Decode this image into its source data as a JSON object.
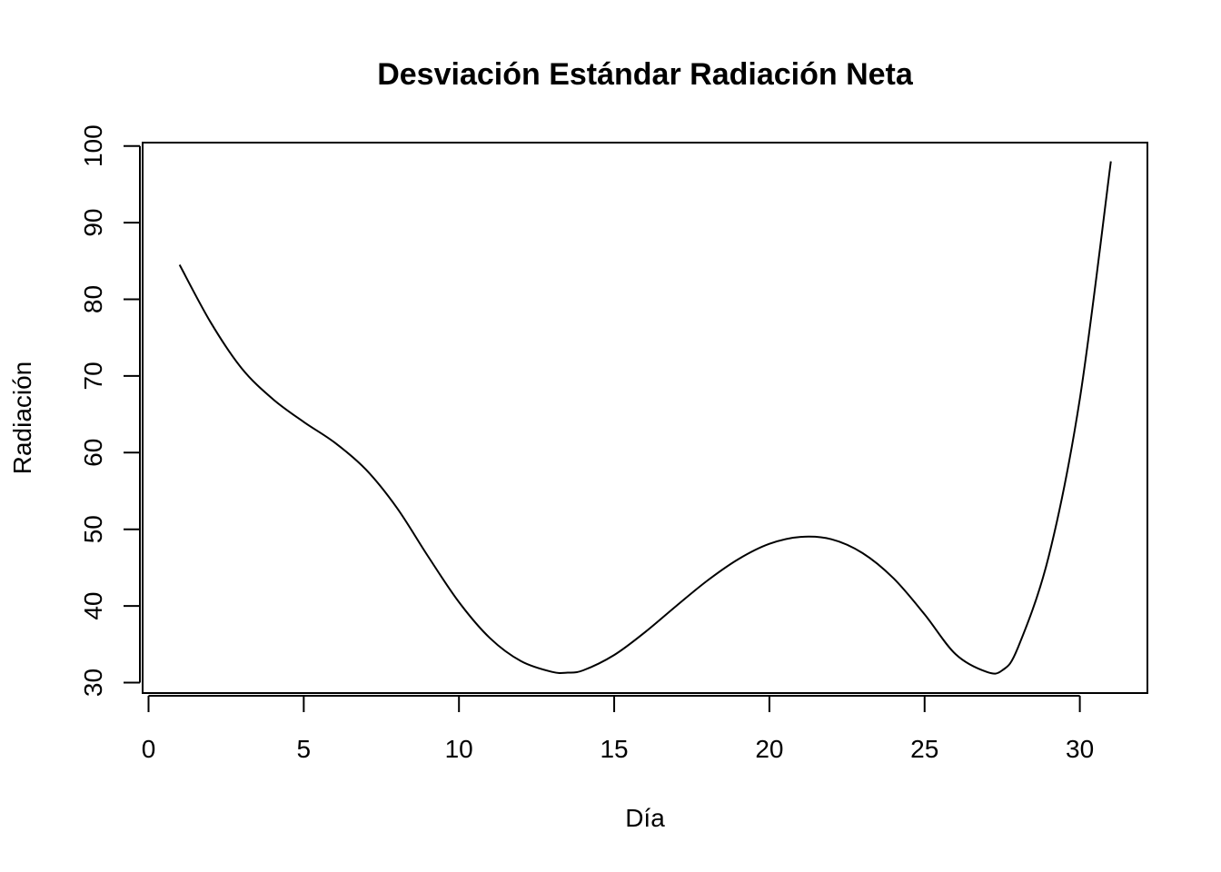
{
  "chart_data": {
    "type": "line",
    "title": "Desviación Estándar Radiación Neta",
    "xlabel": "Día",
    "ylabel": "Radiación",
    "xlim": [
      0,
      31
    ],
    "ylim": [
      30,
      100
    ],
    "x_ticks": [
      0,
      5,
      10,
      15,
      20,
      25,
      30
    ],
    "y_ticks": [
      30,
      40,
      50,
      60,
      70,
      80,
      90,
      100
    ],
    "x_tick_labels": [
      "0",
      "5",
      "10",
      "15",
      "20",
      "25",
      "30"
    ],
    "y_tick_labels": [
      "30",
      "40",
      "50",
      "60",
      "70",
      "80",
      "90",
      "100"
    ],
    "grid": false,
    "series": [
      {
        "x": [
          1,
          2,
          3,
          4,
          5,
          6,
          7,
          8,
          9,
          10,
          11,
          12,
          13,
          13.5,
          14,
          15,
          16,
          17,
          18,
          19,
          20,
          21,
          22,
          23,
          24,
          25,
          26,
          27,
          27.5,
          28,
          29,
          30,
          31
        ],
        "y": [
          84.5,
          77.0,
          71.0,
          67.0,
          64.0,
          61.3,
          57.8,
          52.8,
          46.5,
          40.5,
          35.8,
          32.8,
          31.4,
          31.3,
          31.6,
          33.6,
          36.6,
          40.0,
          43.3,
          46.1,
          48.1,
          49.0,
          48.7,
          46.9,
          43.6,
          38.9,
          33.7,
          31.4,
          31.6,
          34.5,
          46.5,
          67.0,
          98.0
        ]
      }
    ]
  }
}
